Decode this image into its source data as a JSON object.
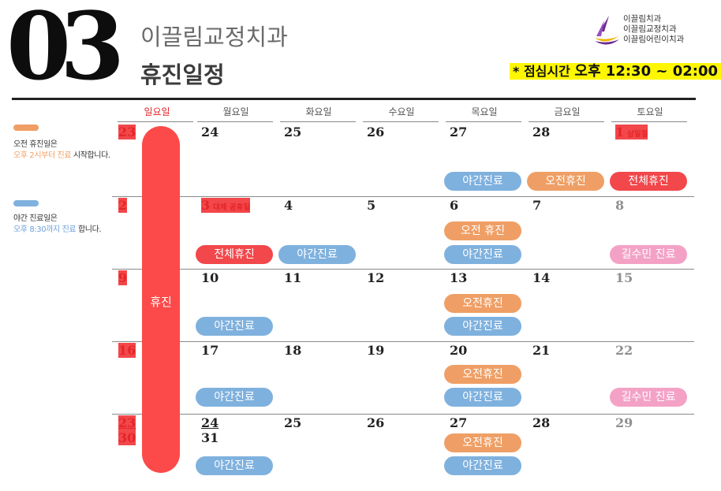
{
  "header": {
    "month_number": "03",
    "clinic_name": "이끌림교정치과",
    "subtitle": "휴진일정",
    "brand_lines": [
      "이끌림치과",
      "이끌림교정치과",
      "이끌림어린이치과"
    ],
    "lunch_prefix": "* 점심시간",
    "lunch_time": "오후 12:30 ~ 02:00"
  },
  "legend": [
    {
      "color": "#ef9f65",
      "line1": "오전 휴진일은",
      "line2_highlight": "오후 2시부터 진료",
      "line2_rest": " 시작합니다."
    },
    {
      "color": "#7fb1de",
      "line1": "야간 진료일은",
      "line2_highlight": "오후 8:30까지 진료",
      "line2_rest": " 합니다."
    }
  ],
  "weekdays": [
    "일요일",
    "월요일",
    "화요일",
    "수요일",
    "목요일",
    "금요일",
    "토요일"
  ],
  "closed_bar_label": "휴진",
  "weeks": [
    {
      "dates": [
        "23",
        "24",
        "25",
        "26",
        "27",
        "28",
        "1"
      ],
      "notes": {
        "6": "삼일절"
      },
      "second_line": {},
      "upper_pills": [],
      "lower_pills": [
        {
          "col": 4,
          "type": "blue",
          "label": "야간진료"
        },
        {
          "col": 5,
          "type": "orange",
          "label": "오전휴진"
        },
        {
          "col": 6,
          "type": "red",
          "label": "전체휴진"
        }
      ]
    },
    {
      "dates": [
        "2",
        "3",
        "4",
        "5",
        "6",
        "7",
        "8"
      ],
      "notes": {
        "1": "대체 공휴일"
      },
      "second_line": {},
      "upper_pills": [
        {
          "col": 4,
          "type": "orange",
          "label": "오전 휴진"
        }
      ],
      "lower_pills": [
        {
          "col": 1,
          "type": "red",
          "label": "전체휴진"
        },
        {
          "col": 2,
          "type": "blue",
          "label": "야간진료"
        },
        {
          "col": 4,
          "type": "blue",
          "label": "야간진료"
        },
        {
          "col": 6,
          "type": "pink",
          "label": "길수민 진료"
        }
      ]
    },
    {
      "dates": [
        "9",
        "10",
        "11",
        "12",
        "13",
        "14",
        "15"
      ],
      "notes": {},
      "second_line": {},
      "upper_pills": [
        {
          "col": 4,
          "type": "orange",
          "label": "오전휴진"
        }
      ],
      "lower_pills": [
        {
          "col": 1,
          "type": "blue",
          "label": "야간진료"
        },
        {
          "col": 4,
          "type": "blue",
          "label": "야간진료"
        }
      ]
    },
    {
      "dates": [
        "16",
        "17",
        "18",
        "19",
        "20",
        "21",
        "22"
      ],
      "notes": {},
      "second_line": {},
      "upper_pills": [
        {
          "col": 4,
          "type": "orange",
          "label": "오전휴진"
        }
      ],
      "lower_pills": [
        {
          "col": 1,
          "type": "blue",
          "label": "야간진료"
        },
        {
          "col": 4,
          "type": "blue",
          "label": "야간진료"
        },
        {
          "col": 6,
          "type": "pink",
          "label": "길수민 진료"
        }
      ]
    },
    {
      "dates": [
        "23",
        "24",
        "25",
        "26",
        "27",
        "28",
        "29"
      ],
      "notes": {},
      "second_line": {
        "0": "30",
        "1": "31"
      },
      "upper_pills": [
        {
          "col": 4,
          "type": "orange",
          "label": "오전휴진"
        }
      ],
      "lower_pills": [
        {
          "col": 1,
          "type": "blue",
          "label": "야간진료"
        },
        {
          "col": 4,
          "type": "blue",
          "label": "야간진료"
        }
      ]
    }
  ]
}
